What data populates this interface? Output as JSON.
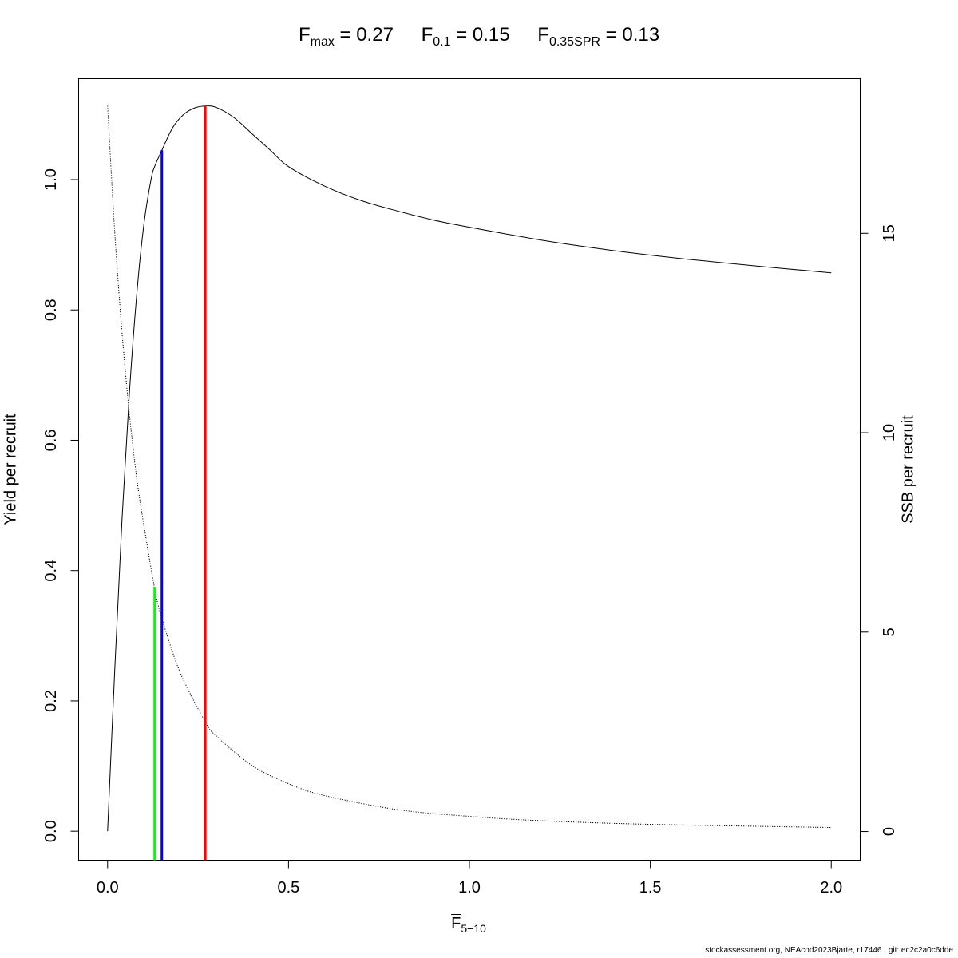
{
  "title": {
    "fmax": {
      "sym": "F",
      "sub": "max",
      "eq": "= 0.27"
    },
    "f01": {
      "sym": "F",
      "sub": "0.1",
      "eq": "= 0.15"
    },
    "f035": {
      "sym": "F",
      "sub": "0.35SPR",
      "eq": "= 0.13"
    }
  },
  "footer": "stockassessment.org, NEAcod2023Bjarte, r17446 , git: ec2c2a0c6dde",
  "chart_data": {
    "type": "line",
    "xlabel": {
      "sym": "F",
      "sub": "5−10"
    },
    "ylabel_left": "Yield per recruit",
    "ylabel_right": "SSB per recruit",
    "xlim": [
      -0.08,
      2.08
    ],
    "ylim_left": [
      -0.0445,
      1.155
    ],
    "ylim_right": [
      -0.72,
      18.88
    ],
    "x_ticks": [
      0.0,
      0.5,
      1.0,
      1.5,
      2.0
    ],
    "x_tick_labels": [
      "0.0",
      "0.5",
      "1.0",
      "1.5",
      "2.0"
    ],
    "y_left_ticks": [
      0.0,
      0.2,
      0.4,
      0.6,
      0.8,
      1.0
    ],
    "y_left_tick_labels": [
      "0.0",
      "0.2",
      "0.4",
      "0.6",
      "0.8",
      "1.0"
    ],
    "y_right_ticks": [
      0,
      5,
      10,
      15
    ],
    "y_right_tick_labels": [
      "0",
      "5",
      "10",
      "15"
    ],
    "grid": false,
    "legend": "none",
    "series": [
      {
        "axis": "left",
        "style": "solid",
        "color": "#000000",
        "x": [
          0.0,
          0.02,
          0.04,
          0.06,
          0.08,
          0.1,
          0.12,
          0.13,
          0.15,
          0.18,
          0.21,
          0.24,
          0.27,
          0.3,
          0.35,
          0.4,
          0.45,
          0.5,
          0.6,
          0.7,
          0.8,
          0.9,
          1.0,
          1.2,
          1.4,
          1.6,
          1.8,
          2.0
        ],
        "y": [
          0.0,
          0.25,
          0.48,
          0.67,
          0.82,
          0.93,
          1.0,
          1.02,
          1.045,
          1.08,
          1.1,
          1.11,
          1.113,
          1.111,
          1.095,
          1.07,
          1.045,
          1.02,
          0.99,
          0.968,
          0.952,
          0.938,
          0.927,
          0.907,
          0.891,
          0.878,
          0.867,
          0.857
        ]
      },
      {
        "axis": "right",
        "style": "dotted",
        "color": "#000000",
        "x": [
          0.0,
          0.02,
          0.04,
          0.06,
          0.08,
          0.1,
          0.13,
          0.15,
          0.2,
          0.27,
          0.3,
          0.4,
          0.5,
          0.6,
          0.8,
          1.0,
          1.2,
          1.5,
          2.0
        ],
        "y": [
          18.2,
          15.0,
          12.5,
          10.5,
          8.9,
          7.7,
          6.1,
          5.35,
          4.0,
          2.75,
          2.4,
          1.65,
          1.2,
          0.9,
          0.55,
          0.38,
          0.27,
          0.18,
          0.1
        ]
      }
    ],
    "reference_lines": [
      {
        "name": "Fmax",
        "x": 0.27,
        "y_top": 1.113,
        "color": "#ff0000"
      },
      {
        "name": "F0.1",
        "x": 0.15,
        "y_top": 1.045,
        "color": "#0000ff"
      },
      {
        "name": "F0.35SPR",
        "x": 0.13,
        "y_top": 0.375,
        "color": "#00ff00"
      }
    ]
  }
}
